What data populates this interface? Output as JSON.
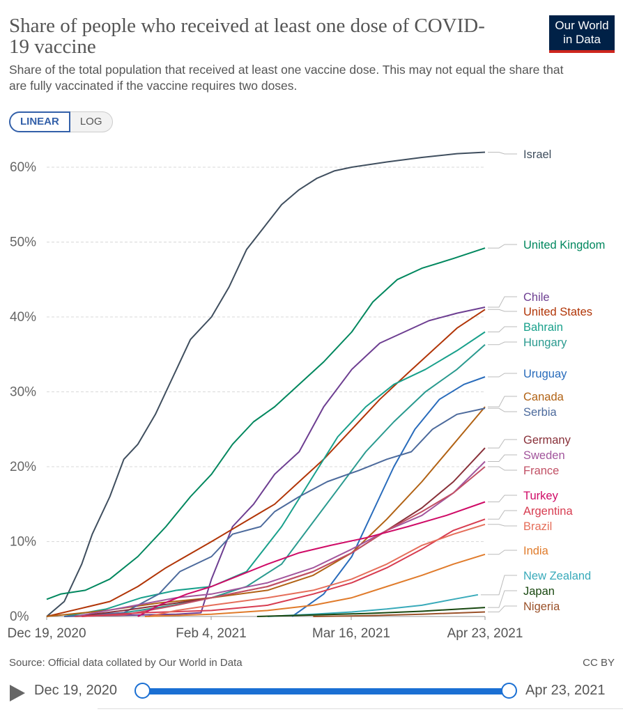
{
  "header": {
    "title": "Share of people who received at least one dose of COVID-19 vaccine",
    "subtitle": "Share of the total population that received at least one vaccine dose. This may not equal the share that are fully vaccinated if the vaccine requires two doses.",
    "logo_line1": "Our World",
    "logo_line2": "in Data"
  },
  "scale_toggle": {
    "linear": "LINEAR",
    "log": "LOG",
    "selected": "LINEAR"
  },
  "footer": {
    "source": "Source: Official data collated by Our World in Data",
    "license": "CC BY"
  },
  "timeline": {
    "start": "Dec 19, 2020",
    "end": "Apr 23, 2021"
  },
  "chart_data": {
    "type": "line",
    "title": "Share of people who received at least one dose of COVID-19 vaccine",
    "x_label": "",
    "y_label": "",
    "x_range": [
      "2020-12-19",
      "2021-04-23"
    ],
    "x_ticks": [
      "Dec 19, 2020",
      "Feb 4, 2021",
      "Mar 16, 2021",
      "Apr 23, 2021"
    ],
    "y_range": [
      0,
      62
    ],
    "y_ticks": [
      "0%",
      "10%",
      "20%",
      "30%",
      "40%",
      "50%",
      "60%"
    ],
    "grid": "horizontal dashed",
    "legend": "right, labels at line ends",
    "series": [
      {
        "name": "Israel",
        "color": "#3f4e5e",
        "points": [
          [
            "2020-12-19",
            0
          ],
          [
            "2020-12-24",
            2
          ],
          [
            "2020-12-29",
            7
          ],
          [
            "2021-01-01",
            11
          ],
          [
            "2021-01-06",
            16
          ],
          [
            "2021-01-10",
            21
          ],
          [
            "2021-01-14",
            23
          ],
          [
            "2021-01-19",
            27
          ],
          [
            "2021-01-24",
            32
          ],
          [
            "2021-01-29",
            37
          ],
          [
            "2021-02-04",
            40
          ],
          [
            "2021-02-09",
            44
          ],
          [
            "2021-02-14",
            49
          ],
          [
            "2021-02-19",
            52
          ],
          [
            "2021-02-24",
            55
          ],
          [
            "2021-03-01",
            57
          ],
          [
            "2021-03-06",
            58.5
          ],
          [
            "2021-03-11",
            59.5
          ],
          [
            "2021-03-16",
            60
          ],
          [
            "2021-03-26",
            60.7
          ],
          [
            "2021-04-05",
            61.3
          ],
          [
            "2021-04-15",
            61.8
          ],
          [
            "2021-04-23",
            62
          ]
        ]
      },
      {
        "name": "United Kingdom",
        "color": "#00875e",
        "points": [
          [
            "2020-12-19",
            2.3
          ],
          [
            "2020-12-23",
            3
          ],
          [
            "2020-12-30",
            3.5
          ],
          [
            "2021-01-06",
            5
          ],
          [
            "2021-01-14",
            8
          ],
          [
            "2021-01-22",
            12
          ],
          [
            "2021-01-29",
            16
          ],
          [
            "2021-02-04",
            19
          ],
          [
            "2021-02-10",
            23
          ],
          [
            "2021-02-16",
            26
          ],
          [
            "2021-02-22",
            28
          ],
          [
            "2021-03-01",
            31
          ],
          [
            "2021-03-08",
            34
          ],
          [
            "2021-03-16",
            38
          ],
          [
            "2021-03-22",
            42
          ],
          [
            "2021-03-29",
            45
          ],
          [
            "2021-04-05",
            46.5
          ],
          [
            "2021-04-14",
            47.8
          ],
          [
            "2021-04-23",
            49.2
          ]
        ]
      },
      {
        "name": "Chile",
        "color": "#6d3e91",
        "points": [
          [
            "2020-12-24",
            0
          ],
          [
            "2021-01-25",
            0.3
          ],
          [
            "2021-02-01",
            0.5
          ],
          [
            "2021-02-04",
            5
          ],
          [
            "2021-02-10",
            12
          ],
          [
            "2021-02-16",
            15
          ],
          [
            "2021-02-22",
            19
          ],
          [
            "2021-03-01",
            22
          ],
          [
            "2021-03-08",
            28
          ],
          [
            "2021-03-16",
            33
          ],
          [
            "2021-03-24",
            36.5
          ],
          [
            "2021-03-31",
            38
          ],
          [
            "2021-04-07",
            39.5
          ],
          [
            "2021-04-15",
            40.5
          ],
          [
            "2021-04-23",
            41.3
          ]
        ]
      },
      {
        "name": "United States",
        "color": "#b13507",
        "points": [
          [
            "2020-12-19",
            0
          ],
          [
            "2020-12-28",
            1
          ],
          [
            "2021-01-06",
            2
          ],
          [
            "2021-01-14",
            4
          ],
          [
            "2021-01-22",
            6.5
          ],
          [
            "2021-02-04",
            10
          ],
          [
            "2021-02-13",
            12.5
          ],
          [
            "2021-02-22",
            15
          ],
          [
            "2021-03-01",
            18
          ],
          [
            "2021-03-08",
            21
          ],
          [
            "2021-03-16",
            25
          ],
          [
            "2021-03-24",
            29
          ],
          [
            "2021-04-01",
            32.5
          ],
          [
            "2021-04-08",
            35.5
          ],
          [
            "2021-04-15",
            38.5
          ],
          [
            "2021-04-23",
            41
          ]
        ]
      },
      {
        "name": "Bahrain",
        "color": "#18a08b",
        "points": [
          [
            "2020-12-24",
            0
          ],
          [
            "2021-01-05",
            1
          ],
          [
            "2021-01-15",
            2.5
          ],
          [
            "2021-01-25",
            3.5
          ],
          [
            "2021-02-04",
            4
          ],
          [
            "2021-02-14",
            6
          ],
          [
            "2021-02-24",
            12
          ],
          [
            "2021-03-04",
            18
          ],
          [
            "2021-03-12",
            24
          ],
          [
            "2021-03-20",
            28
          ],
          [
            "2021-03-28",
            31
          ],
          [
            "2021-04-06",
            33
          ],
          [
            "2021-04-15",
            35.5
          ],
          [
            "2021-04-23",
            38
          ]
        ]
      },
      {
        "name": "Hungary",
        "color": "#2a9a8f",
        "points": [
          [
            "2020-12-27",
            0
          ],
          [
            "2021-01-10",
            0.5
          ],
          [
            "2021-01-24",
            1.5
          ],
          [
            "2021-02-04",
            2.5
          ],
          [
            "2021-02-14",
            4
          ],
          [
            "2021-02-24",
            7
          ],
          [
            "2021-03-04",
            12
          ],
          [
            "2021-03-12",
            17
          ],
          [
            "2021-03-20",
            22
          ],
          [
            "2021-03-28",
            26
          ],
          [
            "2021-04-06",
            30
          ],
          [
            "2021-04-15",
            33
          ],
          [
            "2021-04-23",
            36.3
          ]
        ]
      },
      {
        "name": "Uruguay",
        "color": "#286bbb",
        "points": [
          [
            "2021-02-27",
            0
          ],
          [
            "2021-03-02",
            1
          ],
          [
            "2021-03-08",
            3
          ],
          [
            "2021-03-16",
            8
          ],
          [
            "2021-03-22",
            14
          ],
          [
            "2021-03-28",
            20
          ],
          [
            "2021-04-03",
            25
          ],
          [
            "2021-04-10",
            29
          ],
          [
            "2021-04-17",
            31
          ],
          [
            "2021-04-23",
            32
          ]
        ]
      },
      {
        "name": "Canada",
        "color": "#b16214",
        "points": [
          [
            "2020-12-19",
            0
          ],
          [
            "2021-01-05",
            0.8
          ],
          [
            "2021-01-20",
            1.8
          ],
          [
            "2021-02-04",
            2.5
          ],
          [
            "2021-02-20",
            3.5
          ],
          [
            "2021-03-05",
            5.5
          ],
          [
            "2021-03-16",
            8.5
          ],
          [
            "2021-03-26",
            13
          ],
          [
            "2021-04-05",
            18
          ],
          [
            "2021-04-14",
            23
          ],
          [
            "2021-04-23",
            28
          ]
        ]
      },
      {
        "name": "Serbia",
        "color": "#4c6a9c",
        "points": [
          [
            "2020-12-24",
            0
          ],
          [
            "2021-01-10",
            0.5
          ],
          [
            "2021-01-20",
            3
          ],
          [
            "2021-01-26",
            6
          ],
          [
            "2021-02-04",
            8
          ],
          [
            "2021-02-10",
            11
          ],
          [
            "2021-02-18",
            12
          ],
          [
            "2021-02-22",
            14
          ],
          [
            "2021-03-01",
            16
          ],
          [
            "2021-03-09",
            18
          ],
          [
            "2021-03-18",
            19.5
          ],
          [
            "2021-03-26",
            21
          ],
          [
            "2021-04-02",
            22
          ],
          [
            "2021-04-08",
            25
          ],
          [
            "2021-04-15",
            27
          ],
          [
            "2021-04-23",
            27.8
          ]
        ]
      },
      {
        "name": "Germany",
        "color": "#883039",
        "points": [
          [
            "2020-12-27",
            0
          ],
          [
            "2021-01-10",
            0.8
          ],
          [
            "2021-01-25",
            1.8
          ],
          [
            "2021-02-04",
            2.5
          ],
          [
            "2021-02-20",
            4
          ],
          [
            "2021-03-05",
            6
          ],
          [
            "2021-03-16",
            8.5
          ],
          [
            "2021-03-26",
            11.5
          ],
          [
            "2021-04-05",
            14.5
          ],
          [
            "2021-04-14",
            18
          ],
          [
            "2021-04-23",
            22.5
          ]
        ]
      },
      {
        "name": "Sweden",
        "color": "#a2559c",
        "points": [
          [
            "2020-12-27",
            0
          ],
          [
            "2021-01-10",
            1.2
          ],
          [
            "2021-01-25",
            2.5
          ],
          [
            "2021-02-04",
            3
          ],
          [
            "2021-02-20",
            4.5
          ],
          [
            "2021-03-05",
            6.5
          ],
          [
            "2021-03-16",
            9
          ],
          [
            "2021-03-26",
            11.5
          ],
          [
            "2021-04-05",
            13.5
          ],
          [
            "2021-04-14",
            16.5
          ],
          [
            "2021-04-23",
            20.7
          ]
        ]
      },
      {
        "name": "France",
        "color": "#c15065",
        "points": [
          [
            "2020-12-27",
            0
          ],
          [
            "2021-01-10",
            0.2
          ],
          [
            "2021-01-25",
            1.5
          ],
          [
            "2021-02-04",
            2.5
          ],
          [
            "2021-02-20",
            4
          ],
          [
            "2021-03-05",
            6
          ],
          [
            "2021-03-16",
            8.5
          ],
          [
            "2021-03-26",
            11.5
          ],
          [
            "2021-04-05",
            14
          ],
          [
            "2021-04-14",
            16.5
          ],
          [
            "2021-04-23",
            20
          ]
        ]
      },
      {
        "name": "Turkey",
        "color": "#cf0a66",
        "points": [
          [
            "2021-01-14",
            0
          ],
          [
            "2021-01-20",
            1.5
          ],
          [
            "2021-01-28",
            3
          ],
          [
            "2021-02-04",
            4
          ],
          [
            "2021-02-12",
            5.5
          ],
          [
            "2021-02-20",
            7
          ],
          [
            "2021-03-01",
            8.5
          ],
          [
            "2021-03-10",
            9.5
          ],
          [
            "2021-03-20",
            10.5
          ],
          [
            "2021-04-01",
            12
          ],
          [
            "2021-04-12",
            13.5
          ],
          [
            "2021-04-23",
            15.3
          ]
        ]
      },
      {
        "name": "Argentina",
        "color": "#d73c50",
        "points": [
          [
            "2020-12-29",
            0
          ],
          [
            "2021-01-15",
            0.5
          ],
          [
            "2021-02-04",
            0.8
          ],
          [
            "2021-02-20",
            1.5
          ],
          [
            "2021-03-05",
            3
          ],
          [
            "2021-03-16",
            4.5
          ],
          [
            "2021-03-26",
            6.5
          ],
          [
            "2021-04-05",
            9
          ],
          [
            "2021-04-14",
            11.5
          ],
          [
            "2021-04-23",
            13
          ]
        ]
      },
      {
        "name": "Brazil",
        "color": "#e56e5a",
        "points": [
          [
            "2021-01-17",
            0
          ],
          [
            "2021-01-25",
            0.8
          ],
          [
            "2021-02-04",
            1.5
          ],
          [
            "2021-02-20",
            2.5
          ],
          [
            "2021-03-05",
            3.5
          ],
          [
            "2021-03-16",
            5
          ],
          [
            "2021-03-26",
            7
          ],
          [
            "2021-04-05",
            9.5
          ],
          [
            "2021-04-14",
            11
          ],
          [
            "2021-04-23",
            12.3
          ]
        ]
      },
      {
        "name": "India",
        "color": "#e07b2b",
        "points": [
          [
            "2021-01-16",
            0
          ],
          [
            "2021-02-04",
            0.3
          ],
          [
            "2021-02-20",
            0.8
          ],
          [
            "2021-03-05",
            1.5
          ],
          [
            "2021-03-16",
            2.5
          ],
          [
            "2021-03-26",
            4
          ],
          [
            "2021-04-05",
            5.5
          ],
          [
            "2021-04-14",
            7
          ],
          [
            "2021-04-23",
            8.3
          ]
        ]
      },
      {
        "name": "New Zealand",
        "color": "#38aaba",
        "points": [
          [
            "2021-02-20",
            0
          ],
          [
            "2021-03-05",
            0.3
          ],
          [
            "2021-03-16",
            0.6
          ],
          [
            "2021-03-26",
            1
          ],
          [
            "2021-04-05",
            1.5
          ],
          [
            "2021-04-14",
            2.3
          ],
          [
            "2021-04-21",
            2.9
          ]
        ]
      },
      {
        "name": "Japan",
        "color": "#18470f",
        "points": [
          [
            "2021-02-17",
            0
          ],
          [
            "2021-03-05",
            0.2
          ],
          [
            "2021-03-20",
            0.4
          ],
          [
            "2021-04-05",
            0.7
          ],
          [
            "2021-04-23",
            1.2
          ]
        ]
      },
      {
        "name": "Nigeria",
        "color": "#9a5129",
        "points": [
          [
            "2021-03-05",
            0
          ],
          [
            "2021-03-20",
            0.1
          ],
          [
            "2021-04-05",
            0.3
          ],
          [
            "2021-04-23",
            0.6
          ]
        ]
      }
    ]
  }
}
